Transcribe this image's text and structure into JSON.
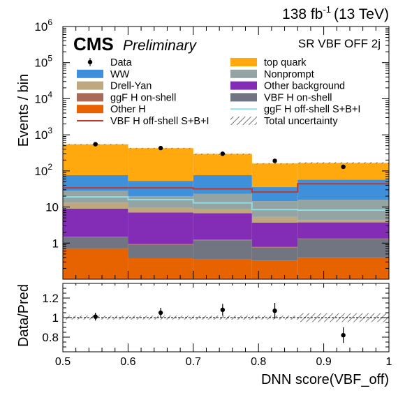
{
  "header": {
    "lumi": "138 fb",
    "lumi_exp": "-1",
    "energy": "(13 TeV)",
    "experiment": "CMS",
    "status": "Preliminary",
    "region": "SR VBF OFF 2j"
  },
  "colors": {
    "WW": "#3f90da",
    "Drell-Yan": "#bfa77f",
    "ggF H on-shell": "#a96b59",
    "Other H": "#e76300",
    "top quark": "#ffa90e",
    "Nonprompt": "#94a4a2",
    "Other background": "#832db6",
    "VBF H on-shell": "#717581",
    "VBF H off-shell S+B+I": "#c0392b",
    "ggF H off-shell S+B+I": "#8fdde6"
  },
  "chart_data": {
    "type": "stacked-histogram",
    "bin_edges": [
      0.5,
      0.6,
      0.7,
      0.79,
      0.86,
      1.0
    ],
    "y_scale": "log",
    "ylim": [
      0.1,
      1000000
    ],
    "xlim": [
      0.5,
      1.0
    ],
    "ylabel": "Events / bin",
    "xlabel": "DNN score(VBF_off)",
    "y_tick_labels": [
      "1",
      "10",
      "10",
      "10",
      "10",
      "10",
      "10"
    ],
    "y_tick_exps": [
      "",
      "",
      "2",
      "3",
      "4",
      "5",
      "6"
    ],
    "x_tick_labels": [
      "0.5",
      "0.6",
      "0.7",
      "0.8",
      "0.9",
      "1"
    ],
    "stack_order": [
      "Other H",
      "VBF H on-shell",
      "ggF H on-shell",
      "Other background",
      "Drell-Yan",
      "Nonprompt",
      "WW",
      "top quark"
    ],
    "stack": [
      {
        "name": "Other H",
        "values": [
          0.7,
          0.38,
          0.35,
          0.33,
          0.4
        ]
      },
      {
        "name": "VBF H on-shell",
        "values": [
          0.75,
          0.52,
          0.85,
          0.42,
          0.9
        ]
      },
      {
        "name": "ggF H on-shell",
        "values": [
          0.05,
          0.04,
          0.05,
          0.04,
          0.05
        ]
      },
      {
        "name": "Other background",
        "values": [
          7.5,
          6.1,
          5.5,
          2.9,
          2.4
        ]
      },
      {
        "name": "Drell-Yan",
        "values": [
          4.2,
          2.5,
          2.0,
          1.6,
          0.6
        ]
      },
      {
        "name": "Nonprompt",
        "values": [
          15,
          10.5,
          14.3,
          9.3,
          11.5
        ]
      },
      {
        "name": "WW",
        "values": [
          48,
          33,
          53,
          21,
          41
        ]
      },
      {
        "name": "top quark",
        "values": [
          470,
          374,
          220,
          125,
          110
        ]
      }
    ],
    "overlays": [
      {
        "name": "VBF H off-shell S+B+I",
        "style": "step",
        "values": [
          34,
          34,
          32,
          26,
          44
        ]
      },
      {
        "name": "ggF H off-shell S+B+I",
        "style": "step",
        "values": [
          19,
          16,
          13,
          8.5,
          8.2
        ]
      }
    ],
    "data": {
      "name": "Data",
      "x": [
        0.55,
        0.65,
        0.745,
        0.825,
        0.93
      ],
      "y": [
        550,
        430,
        300,
        190,
        130
      ]
    },
    "ratio": {
      "ylabel": "Data/Pred",
      "ylim": [
        0.65,
        1.35
      ],
      "y_tick_labels": [
        "0.8",
        "1",
        "1.2"
      ],
      "y_tick_values": [
        0.8,
        1.0,
        1.2
      ],
      "reference": 1.0,
      "points": [
        {
          "x": 0.55,
          "y": 1.01,
          "err": 0.04
        },
        {
          "x": 0.65,
          "y": 1.05,
          "err": 0.05
        },
        {
          "x": 0.745,
          "y": 1.08,
          "err": 0.06
        },
        {
          "x": 0.825,
          "y": 1.07,
          "err": 0.08
        },
        {
          "x": 0.93,
          "y": 0.82,
          "err": 0.08
        }
      ],
      "band": [
        {
          "x0": 0.5,
          "x1": 0.6,
          "err": 0.02
        },
        {
          "x0": 0.6,
          "x1": 0.7,
          "err": 0.02
        },
        {
          "x0": 0.7,
          "x1": 0.79,
          "err": 0.02
        },
        {
          "x0": 0.79,
          "x1": 0.86,
          "err": 0.02
        },
        {
          "x0": 0.86,
          "x1": 1.0,
          "err": 0.045
        }
      ]
    },
    "legend": {
      "placement": "top",
      "left": [
        {
          "label": "Data",
          "kind": "marker"
        },
        {
          "label": "WW",
          "kind": "fill",
          "key": "WW"
        },
        {
          "label": "Drell-Yan",
          "kind": "fill",
          "key": "Drell-Yan"
        },
        {
          "label": "ggF H on-shell",
          "kind": "fill",
          "key": "ggF H on-shell"
        },
        {
          "label": "Other H",
          "kind": "fill",
          "key": "Other H"
        },
        {
          "label": "VBF H off-shell S+B+I",
          "kind": "line",
          "key": "VBF H off-shell S+B+I"
        }
      ],
      "right": [
        {
          "label": "top quark",
          "kind": "fill",
          "key": "top quark"
        },
        {
          "label": "Nonprompt",
          "kind": "fill",
          "key": "Nonprompt"
        },
        {
          "label": "Other background",
          "kind": "fill",
          "key": "Other background"
        },
        {
          "label": "VBF H on-shell",
          "kind": "fill",
          "key": "VBF H on-shell"
        },
        {
          "label": "ggF H off-shell S+B+I",
          "kind": "line",
          "key": "ggF H off-shell S+B+I"
        },
        {
          "label": "Total uncertainty",
          "kind": "hatch"
        }
      ]
    }
  }
}
